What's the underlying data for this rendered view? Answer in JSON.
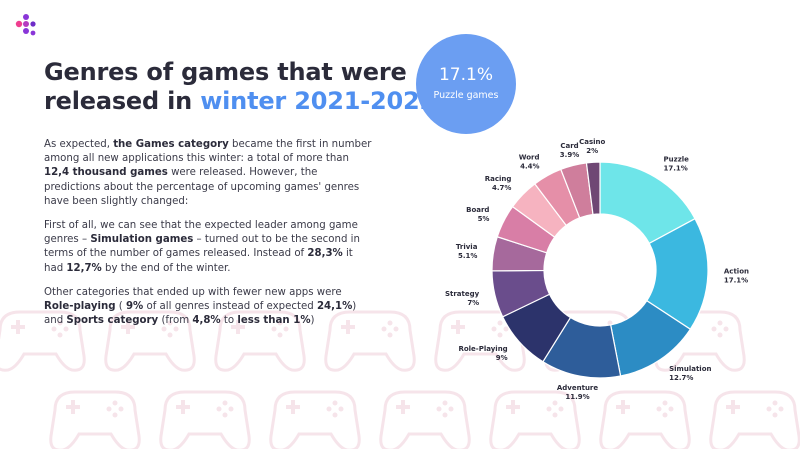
{
  "title": {
    "line1": "Genres of games that were",
    "line2_prefix": "released in ",
    "line2_accent": "winter 2021-2022"
  },
  "paragraphs": {
    "p1": {
      "t1": "As expected, ",
      "b1": "the Games category",
      "t2": " became the first in number among all new applications this winter: a total of more than ",
      "b2": "12,4 thousand games",
      "t3": " were released. However, the predictions about the percentage of upcoming games' genres have been slightly changed:"
    },
    "p2": {
      "t1": "First of all, we can see that the expected leader among game genres – ",
      "b1": "Simulation games",
      "t2": " – turned out to be the second in terms of the number of games released. Instead of ",
      "b2": "28,3%",
      "t3": " it had ",
      "b3": "12,7%",
      "t4": " by the end of the winter."
    },
    "p3": {
      "t1": "Other categories that ended up with fewer new apps were ",
      "b1": "Role-playing",
      "t2": " ( ",
      "b2": "9%",
      "t3": " of all genres instead of expected ",
      "b3": "24,1%",
      "t4": ") and ",
      "b4": "Sports category",
      "t5": " (from ",
      "b5": "4,8%",
      "t6": " to ",
      "b6": "less than 1%",
      "t7": ")"
    }
  },
  "badge": {
    "value": "17.1%",
    "label": "Puzzle games",
    "color": "#6b9ef2"
  },
  "colors": {
    "accent": "#4f8ff0",
    "text": "#2b2b3a",
    "logo_pink": "#ef3e8f",
    "logo_purple": "#8a36d8"
  },
  "chart_data": {
    "type": "pie",
    "variant": "donut",
    "labels": [
      "Puzzle",
      "Action",
      "Simulation",
      "Adventure",
      "Role-Playing",
      "Strategy",
      "Trivia",
      "Board",
      "Racing",
      "Word",
      "Card",
      "Casino"
    ],
    "values": [
      17.1,
      17.1,
      12.7,
      11.9,
      9,
      7,
      5.1,
      5,
      4.7,
      4.4,
      3.9,
      2
    ],
    "value_labels": [
      "17.1%",
      "17.1%",
      "12.7%",
      "11.9%",
      "9%",
      "7%",
      "5.1%",
      "5%",
      "4.7%",
      "4.4%",
      "3.9%",
      "2%"
    ],
    "colors": [
      "#6ee5e9",
      "#3bb8e0",
      "#2c8cc4",
      "#2e5d9a",
      "#2c336b",
      "#6a4d8c",
      "#a6699c",
      "#d87ea6",
      "#f6b3c0",
      "#e58fa8",
      "#cf7e9c",
      "#6f4774"
    ]
  }
}
